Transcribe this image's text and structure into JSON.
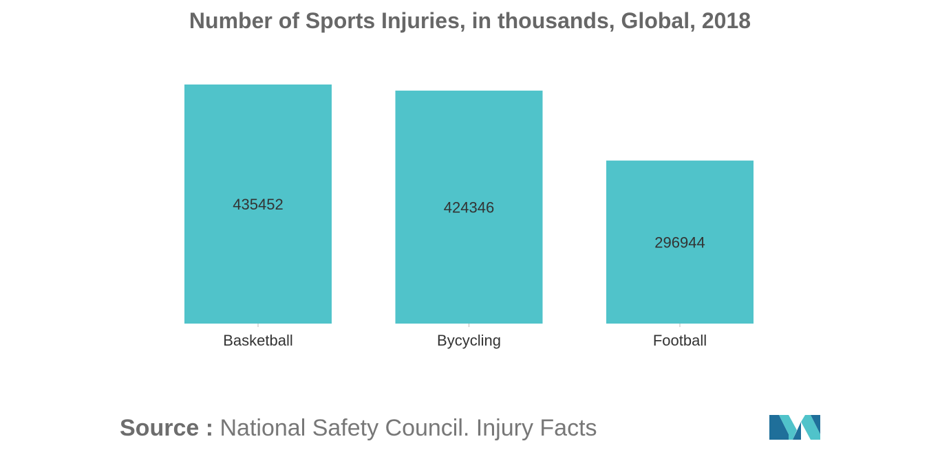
{
  "colors": {
    "bar": "#50c3ca",
    "text": "#333333",
    "title": "#676767",
    "logo_dark": "#1f6f9a",
    "logo_light": "#50c3ca"
  },
  "source": {
    "label": "Source :",
    "text": "National Safety Council. Injury Facts"
  },
  "logo": {
    "icon": "mordor-logo-icon"
  },
  "chart_data": {
    "type": "bar",
    "title": "Number of Sports Injuries, in thousands, Global, 2018",
    "xlabel": "",
    "ylabel": "",
    "categories": [
      "Basketball",
      "Bycycling",
      "Football"
    ],
    "values": [
      435452,
      424346,
      296944
    ],
    "data_labels": [
      "435452",
      "424346",
      "296944"
    ],
    "ylim": [
      0,
      435452
    ],
    "grid": false,
    "legend": "none"
  }
}
